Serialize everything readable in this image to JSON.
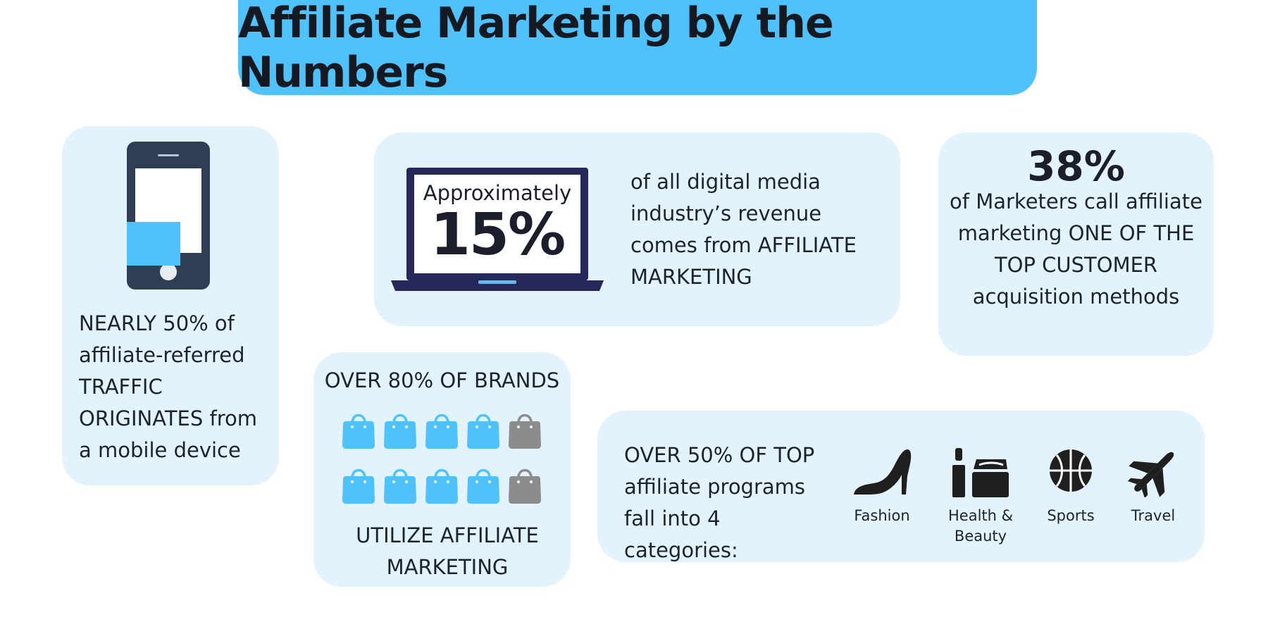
{
  "title": "Affiliate Marketing by the Numbers",
  "cards": {
    "mobile": {
      "icon": "smartphone-icon",
      "text": "NEARLY 50% of affiliate-referred TRAFFIC ORIGINATES from a mobile device"
    },
    "revenue": {
      "icon": "laptop-icon",
      "screen_line1": "Approximately",
      "screen_value": "15%",
      "text": "of all digital media industry’s revenue comes from AFFILIATE MARKETING"
    },
    "marketers": {
      "value": "38%",
      "text": "of Marketers call affiliate marketing ONE OF THE TOP CUSTOMER acquisition methods"
    },
    "brands": {
      "heading": "OVER 80% OF BRANDS",
      "icon": "shopping-bag-icon",
      "filled_ratio": 0.8,
      "filled_color": "#4fc1fb",
      "empty_color": "#8c8c8c",
      "footer": "UTILIZE AFFILIATE MARKETING"
    },
    "categories": {
      "text": "OVER 50% OF TOP affiliate programs fall into 4 categories:",
      "items": [
        {
          "icon": "high-heel-shoe-icon",
          "label": "Fashion"
        },
        {
          "icon": "lipstick-cream-icon",
          "label": "Health & Beauty"
        },
        {
          "icon": "basketball-icon",
          "label": "Sports"
        },
        {
          "icon": "airplane-icon",
          "label": "Travel"
        }
      ]
    }
  },
  "colors": {
    "banner": "#4fc1fb",
    "card_background": "#e2f3fd",
    "text": "#1d2233"
  }
}
